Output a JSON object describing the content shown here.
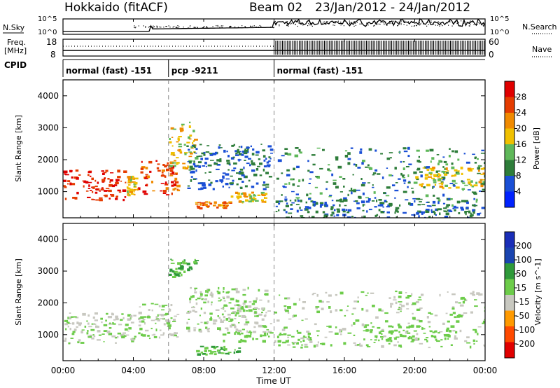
{
  "header": {
    "station": "Hokkaido (fitACF)",
    "beam": "Beam 02",
    "dates": "23/Jan/2012 - 24/Jan/2012"
  },
  "noise_panel": {
    "left_label": "N.Sky",
    "right_label": "N.Search",
    "tick_top": "10^5",
    "tick_bottom": "10^0"
  },
  "freq_panel": {
    "left_label_top": "Freq.",
    "left_label_unit": "[MHz]",
    "left_tick_top": "18",
    "left_tick_bottom": "8",
    "right_tick_top": "60",
    "right_tick_bottom": "0",
    "right_label": "Nave"
  },
  "cpid": {
    "label": "CPID",
    "segments": [
      {
        "text": "normal (fast) -151",
        "start_hour": 0,
        "end_hour": 6
      },
      {
        "text": "pcp -9211",
        "start_hour": 6,
        "end_hour": 12
      },
      {
        "text": "normal (fast) -151",
        "start_hour": 12,
        "end_hour": 24
      }
    ]
  },
  "x_axis": {
    "label": "Time UT",
    "ticks": [
      "00:00",
      "04:00",
      "08:00",
      "12:00",
      "16:00",
      "20:00",
      "00:00"
    ]
  },
  "colors": {
    "power": [
      "#0022ff",
      "#1a4fd6",
      "#2e7d3a",
      "#5fb85a",
      "#f0c000",
      "#f08a00",
      "#e53c00",
      "#e00000"
    ],
    "velocity": [
      "#e00000",
      "#ff4a00",
      "#ff9a00",
      "#c8c8c0",
      "#6dcc4a",
      "#2f9a3a",
      "#1a44b0",
      "#1a2eb8"
    ]
  },
  "chart_data": [
    {
      "type": "heatmap",
      "quantity": "Power",
      "ylabel": "Slant Range [km]",
      "xlabel": "Time UT",
      "x_range_hours": [
        0,
        24
      ],
      "ylim": [
        180,
        4500
      ],
      "yticks": [
        1000,
        2000,
        3000,
        4000
      ],
      "colorbar": {
        "label": "Power [dB]",
        "ticks": [
          "4",
          "8",
          "12",
          "16",
          "20",
          "24",
          "28"
        ],
        "range": [
          0,
          32
        ]
      },
      "regions": [
        {
          "t0": 0.0,
          "t1": 3.6,
          "r0": 750,
          "r1": 1700,
          "value": 28
        },
        {
          "t0": 3.6,
          "t1": 4.1,
          "r0": 900,
          "r1": 1500,
          "value": 18
        },
        {
          "t0": 4.2,
          "t1": 6.5,
          "r0": 900,
          "r1": 2000,
          "value": 26
        },
        {
          "t0": 6.0,
          "t1": 7.5,
          "r0": 1700,
          "r1": 3200,
          "value": 18
        },
        {
          "t0": 7.0,
          "t1": 11.8,
          "r0": 1100,
          "r1": 2500,
          "value": 8
        },
        {
          "t0": 7.5,
          "t1": 9.5,
          "r0": 500,
          "r1": 700,
          "value": 22
        },
        {
          "t0": 9.5,
          "t1": 11.5,
          "r0": 700,
          "r1": 1000,
          "value": 18
        },
        {
          "t0": 12.0,
          "t1": 24.0,
          "r0": 600,
          "r1": 2400,
          "value": 10
        },
        {
          "t0": 12.0,
          "t1": 24.0,
          "r0": 200,
          "r1": 800,
          "value": 8
        },
        {
          "t0": 20.0,
          "t1": 24.0,
          "r0": 1100,
          "r1": 1800,
          "value": 18
        }
      ]
    },
    {
      "type": "heatmap",
      "quantity": "Velocity",
      "ylabel": "Slant Range [km]",
      "xlabel": "Time UT",
      "x_range_hours": [
        0,
        24
      ],
      "ylim": [
        180,
        4500
      ],
      "yticks": [
        1000,
        2000,
        3000,
        4000
      ],
      "colorbar": {
        "label": "Velocity [m s^-1]",
        "ticks": [
          "200",
          "100",
          "50",
          "15",
          "-15",
          "-50",
          "-100",
          "-200"
        ],
        "range": [
          -250,
          250
        ]
      },
      "regions": [
        {
          "t0": 0.0,
          "t1": 4.1,
          "r0": 750,
          "r1": 1700,
          "value": 0
        },
        {
          "t0": 4.2,
          "t1": 6.5,
          "r0": 900,
          "r1": 2000,
          "value": 0
        },
        {
          "t0": 6.0,
          "t1": 7.5,
          "r0": 2800,
          "r1": 3400,
          "value": 60
        },
        {
          "t0": 7.0,
          "t1": 11.8,
          "r0": 1100,
          "r1": 2500,
          "value": 0
        },
        {
          "t0": 7.5,
          "t1": 10.0,
          "r0": 400,
          "r1": 650,
          "value": 60
        },
        {
          "t0": 9.0,
          "t1": 14.0,
          "r0": 800,
          "r1": 1100,
          "value": 40
        },
        {
          "t0": 12.0,
          "t1": 24.0,
          "r0": 600,
          "r1": 2400,
          "value": 0
        },
        {
          "t0": 17.0,
          "t1": 22.0,
          "r0": 800,
          "r1": 1300,
          "value": 40
        }
      ]
    }
  ]
}
